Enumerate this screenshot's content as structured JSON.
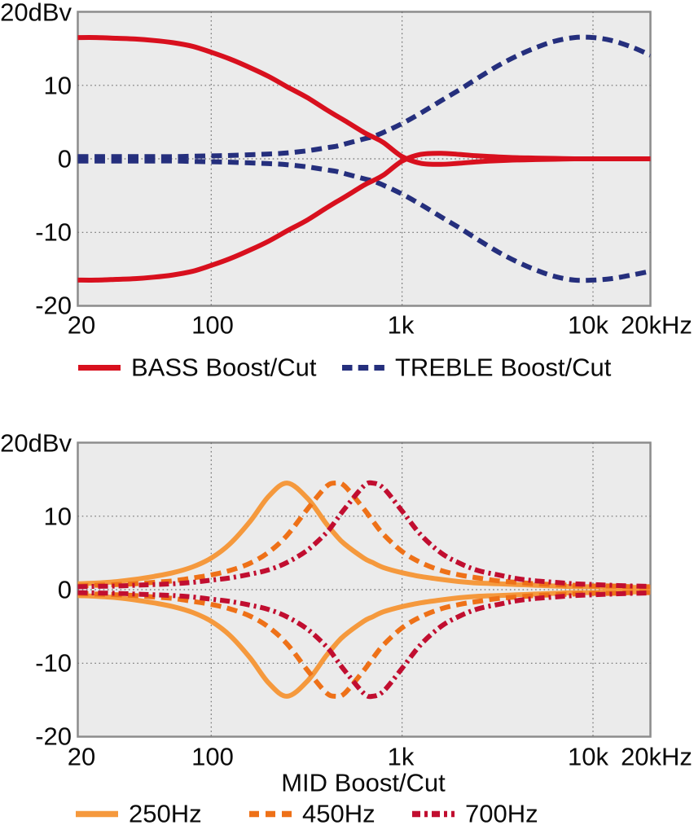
{
  "page": {
    "background": "#ffffff"
  },
  "chart_data": [
    {
      "type": "line",
      "title": "",
      "xlabel": "",
      "ylabel": "",
      "x_scale": "log",
      "x_range_hz": [
        20,
        20000
      ],
      "ylim": [
        -20,
        20
      ],
      "plot_bg": "#ebebeb",
      "frame_color": "#8c8c8c",
      "grid_color": "#6e6e6e",
      "y_tick_labels": [
        "20dBv",
        "10",
        "0",
        "-10",
        "-20"
      ],
      "y_tick_values": [
        20,
        10,
        0,
        -10,
        -20
      ],
      "x_tick_labels": [
        "20",
        "100",
        "1k",
        "10k",
        "20kHz"
      ],
      "x_tick_values": [
        20,
        100,
        1000,
        10000,
        20000
      ],
      "grid_x_hz": [
        100,
        1000,
        10000
      ],
      "grid_y_db": [
        10,
        0,
        -10
      ],
      "legend_position": "below",
      "draw_order": [
        1,
        0
      ],
      "x_hz": [
        20,
        25,
        32,
        40,
        50,
        63,
        80,
        100,
        125,
        160,
        200,
        250,
        320,
        400,
        450,
        500,
        630,
        700,
        800,
        1000,
        1250,
        1600,
        2000,
        2500,
        3200,
        4000,
        5000,
        6300,
        8000,
        10000,
        12500,
        16000,
        20000
      ],
      "series": [
        {
          "name": "BASS Boost/Cut",
          "color": "#d8101e",
          "style": "solid",
          "boost": [
            16.5,
            16.5,
            16.4,
            16.3,
            16.1,
            15.8,
            15.3,
            14.5,
            13.6,
            12.4,
            11.2,
            9.8,
            8.3,
            6.7,
            5.9,
            5.2,
            3.6,
            3.0,
            2.2,
            0.3,
            -0.6,
            -0.75,
            -0.6,
            -0.4,
            -0.25,
            -0.15,
            -0.1,
            -0.05,
            0,
            0,
            0,
            0,
            0
          ],
          "cut": [
            -16.5,
            -16.5,
            -16.4,
            -16.3,
            -16.1,
            -15.8,
            -15.3,
            -14.5,
            -13.6,
            -12.4,
            -11.2,
            -9.8,
            -8.3,
            -6.7,
            -5.9,
            -5.2,
            -3.6,
            -3.0,
            -2.2,
            -0.3,
            0.6,
            0.75,
            0.6,
            0.4,
            0.25,
            0.15,
            0.1,
            0.05,
            0,
            0,
            0,
            0,
            0
          ]
        },
        {
          "name": "TREBLE Boost/Cut",
          "color": "#252f7d",
          "style": "dashed",
          "boost": [
            0.3,
            0.3,
            0.3,
            0.3,
            0.3,
            0.3,
            0.35,
            0.4,
            0.45,
            0.55,
            0.65,
            0.8,
            1.1,
            1.5,
            1.7,
            2.0,
            2.7,
            3.0,
            3.6,
            4.8,
            6.2,
            7.9,
            9.4,
            11.0,
            12.7,
            14.0,
            15.1,
            16.0,
            16.5,
            16.5,
            16.1,
            15.2,
            14.1
          ],
          "cut": [
            -0.3,
            -0.3,
            -0.3,
            -0.3,
            -0.3,
            -0.3,
            -0.35,
            -0.4,
            -0.45,
            -0.55,
            -0.65,
            -0.8,
            -1.1,
            -1.5,
            -1.7,
            -2.0,
            -2.7,
            -3.0,
            -3.6,
            -4.8,
            -6.2,
            -7.9,
            -9.4,
            -11.0,
            -12.7,
            -14.0,
            -15.1,
            -16.0,
            -16.5,
            -16.5,
            -16.3,
            -15.8,
            -15.3
          ]
        }
      ]
    },
    {
      "type": "line",
      "title": "",
      "xlabel": "MID Boost/Cut",
      "ylabel": "",
      "x_scale": "log",
      "x_range_hz": [
        20,
        20000
      ],
      "ylim": [
        -20,
        20
      ],
      "plot_bg": "#ebebeb",
      "frame_color": "#8c8c8c",
      "grid_color": "#6e6e6e",
      "y_tick_labels": [
        "20dBv",
        "10",
        "0",
        "-10",
        "-20"
      ],
      "y_tick_values": [
        20,
        10,
        0,
        -10,
        -20
      ],
      "x_tick_labels": [
        "20",
        "100",
        "1k",
        "10k",
        "20kHz"
      ],
      "x_tick_values": [
        20,
        100,
        1000,
        10000,
        20000
      ],
      "grid_x_hz": [
        100,
        1000,
        10000
      ],
      "grid_y_db": [
        10,
        0,
        -10
      ],
      "legend_position": "below",
      "draw_order": [
        0,
        1,
        2
      ],
      "x_hz": [
        20,
        25,
        32,
        40,
        50,
        63,
        80,
        100,
        125,
        160,
        200,
        250,
        320,
        400,
        450,
        500,
        630,
        700,
        800,
        1000,
        1250,
        1600,
        2000,
        2500,
        3200,
        4000,
        5000,
        6300,
        8000,
        10000,
        12500,
        16000,
        20000
      ],
      "series": [
        {
          "name": "250Hz",
          "color": "#f5993d",
          "style": "solid",
          "peak_hz": 250,
          "boost": [
            0.8,
            0.9,
            1.1,
            1.4,
            1.8,
            2.3,
            3.1,
            4.3,
            6.2,
            9.3,
            12.7,
            14.5,
            12.4,
            9.0,
            7.4,
            6.2,
            4.3,
            3.7,
            3.0,
            2.3,
            1.8,
            1.4,
            1.1,
            0.9,
            0.8,
            0.7,
            0.6,
            0.5,
            0.4,
            0.4,
            0.3,
            0.3,
            0.3
          ],
          "cut": [
            -0.8,
            -0.9,
            -1.1,
            -1.4,
            -1.8,
            -2.3,
            -3.1,
            -4.3,
            -6.2,
            -9.3,
            -12.7,
            -14.5,
            -12.4,
            -9.0,
            -7.4,
            -6.2,
            -4.3,
            -3.7,
            -3.0,
            -2.3,
            -1.8,
            -1.4,
            -1.1,
            -0.9,
            -0.8,
            -0.7,
            -0.6,
            -0.5,
            -0.4,
            -0.4,
            -0.3,
            -0.3,
            -0.3
          ]
        },
        {
          "name": "450Hz",
          "color": "#ee7118",
          "style": "dashed",
          "peak_hz": 450,
          "boost": [
            0.5,
            0.6,
            0.7,
            0.8,
            1.0,
            1.2,
            1.6,
            2.0,
            2.6,
            3.6,
            5.1,
            7.4,
            11.0,
            14.0,
            14.5,
            14.1,
            11.0,
            9.4,
            7.5,
            5.2,
            3.7,
            2.6,
            2.0,
            1.6,
            1.2,
            1.0,
            0.8,
            0.7,
            0.6,
            0.5,
            0.5,
            0.4,
            0.4
          ],
          "cut": [
            -0.5,
            -0.6,
            -0.7,
            -0.8,
            -1.0,
            -1.2,
            -1.6,
            -2.0,
            -2.6,
            -3.6,
            -5.1,
            -7.4,
            -11.0,
            -14.0,
            -14.5,
            -14.1,
            -11.0,
            -9.4,
            -7.5,
            -5.2,
            -3.7,
            -2.6,
            -2.0,
            -1.6,
            -1.2,
            -1.0,
            -0.8,
            -0.7,
            -0.6,
            -0.5,
            -0.5,
            -0.4,
            -0.4
          ]
        },
        {
          "name": "700Hz",
          "color": "#c10e30",
          "style": "dash-dot",
          "peak_hz": 700,
          "boost": [
            0.4,
            0.45,
            0.5,
            0.6,
            0.7,
            0.8,
            1.0,
            1.3,
            1.6,
            2.1,
            2.7,
            3.7,
            5.4,
            7.7,
            9.4,
            11.0,
            14.1,
            14.5,
            13.8,
            10.7,
            7.5,
            5.0,
            3.6,
            2.6,
            2.0,
            1.5,
            1.2,
            1.0,
            0.8,
            0.7,
            0.6,
            0.5,
            0.45
          ],
          "cut": [
            -0.4,
            -0.45,
            -0.5,
            -0.6,
            -0.7,
            -0.8,
            -1.0,
            -1.3,
            -1.6,
            -2.1,
            -2.7,
            -3.7,
            -5.4,
            -7.7,
            -9.4,
            -11.0,
            -14.1,
            -14.5,
            -13.8,
            -10.7,
            -7.5,
            -5.0,
            -3.6,
            -2.6,
            -2.0,
            -1.5,
            -1.2,
            -1.0,
            -0.8,
            -0.7,
            -0.6,
            -0.5,
            -0.45
          ]
        }
      ]
    }
  ]
}
